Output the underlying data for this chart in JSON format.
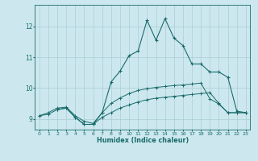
{
  "xlabel": "Humidex (Indice chaleur)",
  "background_color": "#cce8ee",
  "grid_color": "#aacdd5",
  "line_color": "#1a6b6b",
  "xlim": [
    -0.5,
    23.5
  ],
  "ylim": [
    8.65,
    12.7
  ],
  "xticks": [
    0,
    1,
    2,
    3,
    4,
    5,
    6,
    7,
    8,
    9,
    10,
    11,
    12,
    13,
    14,
    15,
    16,
    17,
    18,
    19,
    20,
    21,
    22,
    23
  ],
  "yticks": [
    9,
    10,
    11,
    12
  ],
  "line1_x": [
    0,
    1,
    2,
    3,
    4,
    5,
    6,
    7,
    8,
    9,
    10,
    11,
    12,
    13,
    14,
    15,
    16,
    17,
    18,
    19,
    20,
    21,
    22,
    23
  ],
  "line1_y": [
    9.1,
    9.15,
    9.3,
    9.35,
    9.05,
    8.82,
    8.82,
    9.05,
    9.2,
    9.35,
    9.45,
    9.55,
    9.62,
    9.67,
    9.7,
    9.73,
    9.76,
    9.79,
    9.82,
    9.85,
    9.5,
    9.2,
    9.2,
    9.2
  ],
  "line2_x": [
    0,
    1,
    2,
    3,
    4,
    5,
    6,
    7,
    8,
    9,
    10,
    11,
    12,
    13,
    14,
    15,
    16,
    17,
    18,
    19,
    20,
    21,
    22,
    23
  ],
  "line2_y": [
    9.1,
    9.2,
    9.35,
    9.38,
    9.1,
    8.92,
    8.85,
    9.2,
    9.5,
    9.68,
    9.82,
    9.92,
    9.98,
    10.02,
    10.05,
    10.08,
    10.1,
    10.13,
    10.16,
    9.65,
    9.48,
    9.2,
    9.2,
    9.2
  ],
  "line3_x": [
    2,
    3,
    4,
    5,
    6,
    7,
    8,
    9,
    10,
    11,
    12,
    13,
    14,
    15,
    16,
    17,
    18,
    19,
    20,
    21,
    22,
    23
  ],
  "line3_y": [
    9.3,
    9.35,
    9.05,
    8.82,
    8.82,
    9.2,
    10.2,
    10.55,
    11.05,
    11.2,
    12.2,
    11.55,
    12.25,
    11.62,
    11.38,
    10.78,
    10.78,
    10.52,
    10.52,
    10.35,
    9.25,
    9.2
  ]
}
